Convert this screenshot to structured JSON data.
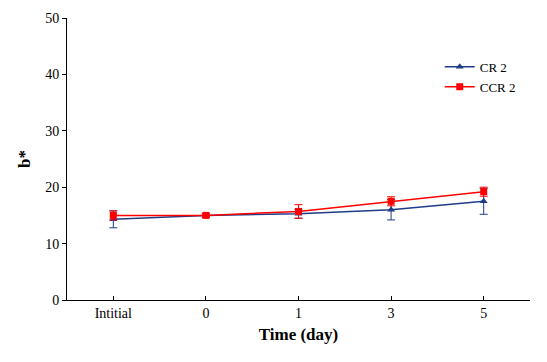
{
  "chart_data": {
    "type": "line",
    "x_label": "Time (day)",
    "y_label": "b*",
    "categories": [
      "Intitial",
      "0",
      "1",
      "3",
      "5"
    ],
    "series": [
      {
        "name": "CR 2",
        "color": "#1f3c88",
        "marker": "triangle",
        "line_style": "solid",
        "values": [
          14.3,
          15.0,
          15.3,
          16.0,
          17.5
        ],
        "error": [
          1.5,
          0.3,
          0.8,
          1.8,
          2.3
        ]
      },
      {
        "name": "CCR 2",
        "color": "#ff0000",
        "marker": "square",
        "line_style": "solid",
        "values": [
          15.0,
          15.0,
          15.7,
          17.5,
          19.2
        ],
        "error": [
          0.8,
          0.3,
          1.2,
          0.8,
          0.8
        ]
      }
    ],
    "ylim": [
      0,
      50
    ],
    "yticks": [
      0,
      10,
      20,
      30,
      40,
      50
    ],
    "grid": false,
    "legend": "upper right"
  }
}
